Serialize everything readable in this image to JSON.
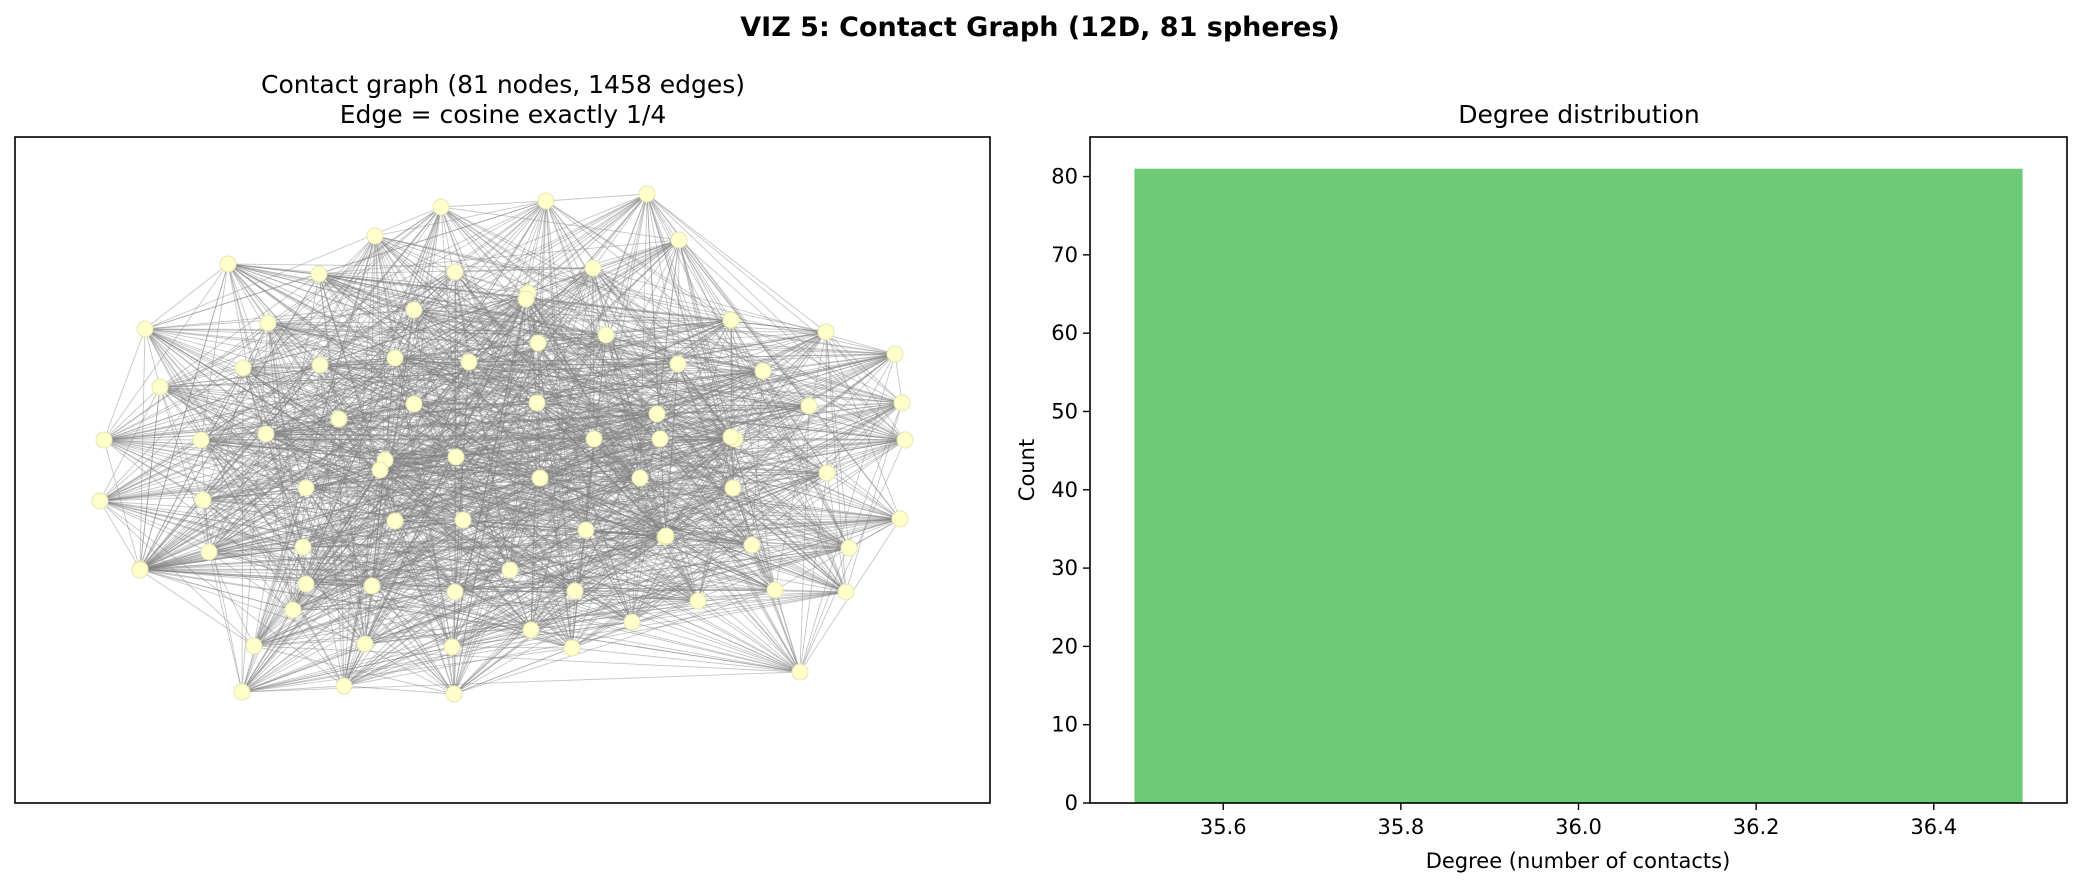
{
  "figure": {
    "suptitle": "VIZ 5: Contact Graph (12D, 81 spheres)"
  },
  "colors": {
    "node_fill": "#ffffcc",
    "node_edge": "#e6e6b0",
    "graph_edge": "#808080",
    "bar_fill": "#6dcb78"
  },
  "chart_data": [
    {
      "type": "network",
      "title_line1": "Contact graph (81 nodes, 1458 edges)",
      "title_line2": "Edge = cosine exactly 1/4",
      "nodes": 81,
      "edges": 1458,
      "degree": 36,
      "axes_ticks": false
    },
    {
      "type": "bar",
      "title": "Degree distribution",
      "xlabel": "Degree (number of contacts)",
      "ylabel": "Count",
      "categories": [
        36
      ],
      "values": [
        81
      ],
      "bar_range": [
        35.5,
        36.5
      ],
      "xlim": [
        35.45,
        36.55
      ],
      "ylim": [
        0,
        85.05
      ],
      "xticks": [
        "35.6",
        "35.8",
        "36.0",
        "36.2",
        "36.4"
      ],
      "yticks": [
        "0",
        "10",
        "20",
        "30",
        "40",
        "50",
        "60",
        "70",
        "80"
      ],
      "grid": false
    }
  ]
}
